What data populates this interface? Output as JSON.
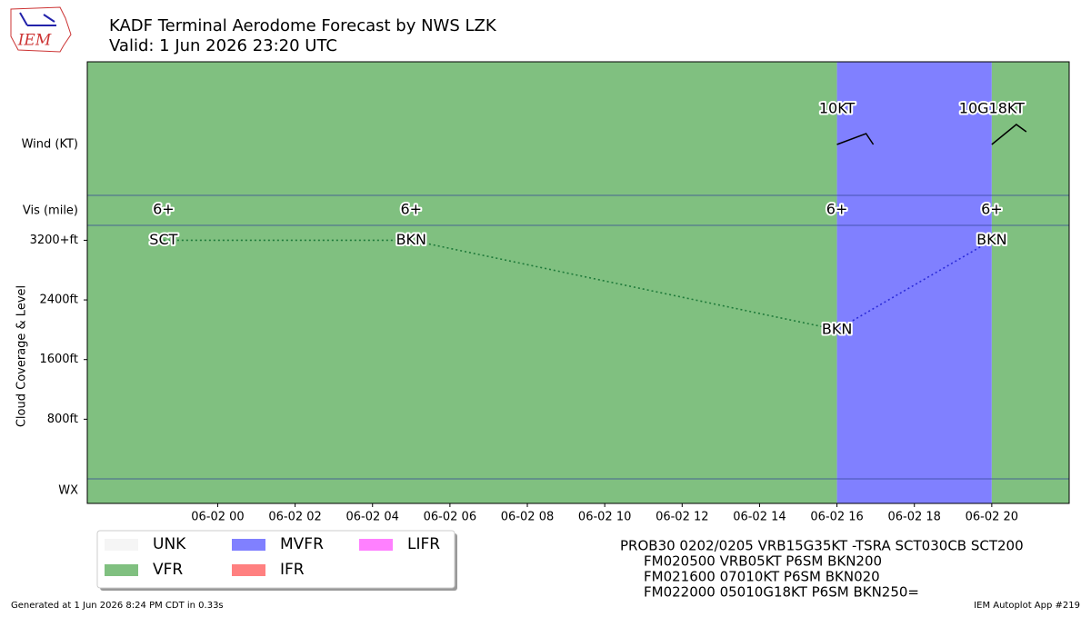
{
  "logo": "IEM",
  "footer": {
    "left": "Generated at 1 Jun 2026 8:24 PM CDT in 0.33s",
    "right": "IEM Autoplot App #219"
  },
  "taf_text": [
    "PROB30 0202/0205 VRB15G35KT -TSRA SCT030CB SCT200",
    "FM020500 VRB05KT P6SM BKN200",
    "FM021600 07010KT P6SM BKN020",
    "FM022000 05010G18KT P6SM BKN250="
  ],
  "chart_data": {
    "type": "taf",
    "title": "KADF Terminal Aerodome Forecast by NWS LZK",
    "subtitle": "Valid: 1 Jun 2026 23:20 UTC",
    "panel_labels": {
      "wind": "Wind (KT)",
      "vis": "Vis (mile)",
      "wx": "WX"
    },
    "ylabel": "Cloud Coverage & Level",
    "xlim": [
      -3.37,
      22.0
    ],
    "xticks": [
      {
        "value": 0,
        "label": "06-02 00"
      },
      {
        "value": 2,
        "label": "06-02 02"
      },
      {
        "value": 4,
        "label": "06-02 04"
      },
      {
        "value": 6,
        "label": "06-02 06"
      },
      {
        "value": 8,
        "label": "06-02 08"
      },
      {
        "value": 10,
        "label": "06-02 10"
      },
      {
        "value": 12,
        "label": "06-02 12"
      },
      {
        "value": 14,
        "label": "06-02 14"
      },
      {
        "value": 16,
        "label": "06-02 16"
      },
      {
        "value": 18,
        "label": "06-02 18"
      },
      {
        "value": 20,
        "label": "06-02 20"
      }
    ],
    "ylim": [
      0,
      3400
    ],
    "yticks": [
      {
        "value": 3200,
        "label": "3200+ft"
      },
      {
        "value": 2400,
        "label": "2400ft"
      },
      {
        "value": 1600,
        "label": "1600ft"
      },
      {
        "value": 800,
        "label": "800ft"
      }
    ],
    "legend": [
      {
        "name": "UNK",
        "color": "#f5f5f5"
      },
      {
        "name": "VFR",
        "color": "#80c080"
      },
      {
        "name": "MVFR",
        "color": "#8080ff"
      },
      {
        "name": "IFR",
        "color": "#ff8080"
      },
      {
        "name": "LIFR",
        "color": "#ff80ff"
      }
    ],
    "bands": [
      {
        "category": "VFR",
        "start": -3.37,
        "end": 16
      },
      {
        "category": "MVFR",
        "start": 16,
        "end": 20
      },
      {
        "category": "VFR",
        "start": 20,
        "end": 22.0
      }
    ],
    "clouds": {
      "x": [
        -1.4,
        5,
        16,
        20
      ],
      "values": [
        3200,
        3200,
        2000,
        3200
      ],
      "coverage": [
        "SCT",
        "BKN",
        "BKN",
        "BKN"
      ],
      "line_colors": [
        "#1f7a3a",
        "#1f7a3a",
        "#2b2bd9"
      ]
    },
    "visibility": {
      "x": [
        -1.4,
        5,
        16,
        20
      ],
      "values": [
        6,
        6,
        6,
        6
      ],
      "value_labels": [
        "6+",
        "6+",
        "6+",
        "6+"
      ]
    },
    "wind": {
      "x": [
        16,
        20
      ],
      "values": [
        10,
        10
      ],
      "gusts": [
        null,
        18
      ],
      "value_labels": [
        "10KT",
        "10G18KT"
      ]
    }
  }
}
